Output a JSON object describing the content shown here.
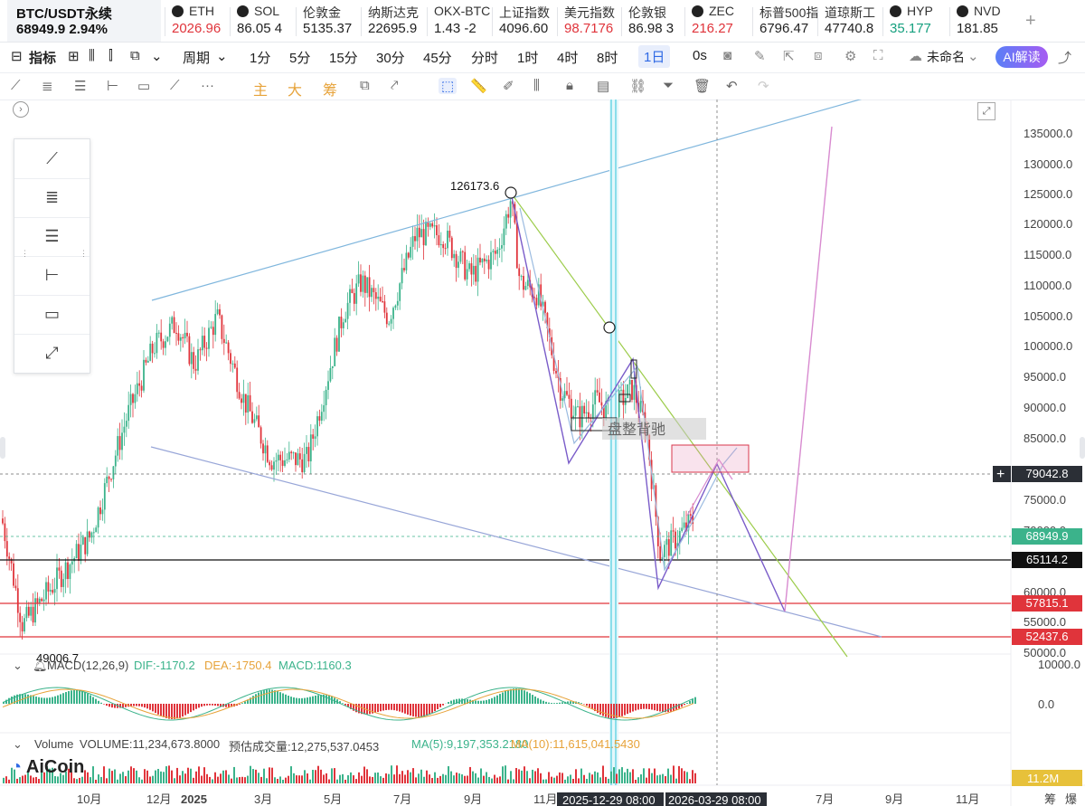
{
  "tickers": [
    {
      "name": "ETH",
      "price": "2026.96",
      "color": "red"
    },
    {
      "name": "SOL",
      "price": "86.05 4",
      "color": "normal"
    },
    {
      "name": "伦敦金",
      "price": "5135.37",
      "color": "normal"
    },
    {
      "name": "纳斯达克",
      "price": "22695.9",
      "color": "normal"
    },
    {
      "name": "OKX-BTC",
      "price": "1.43 -2",
      "color": "normal"
    },
    {
      "name": "上证指数",
      "price": "4096.60",
      "color": "normal"
    },
    {
      "name": "美元指数",
      "price": "98.7176",
      "color": "red"
    },
    {
      "name": "伦敦银",
      "price": "86.98 3",
      "color": "normal"
    },
    {
      "name": "ZEC",
      "price": "216.27",
      "color": "red"
    },
    {
      "name": "标普500指",
      "price": "6796.47",
      "color": "normal"
    },
    {
      "name": "道琼斯工",
      "price": "47740.8",
      "color": "normal"
    },
    {
      "name": "HYP",
      "price": "35.177",
      "color": "green"
    },
    {
      "name": "NVD",
      "price": "181.85",
      "color": "normal"
    }
  ],
  "main_ticker": {
    "name": "BTC/USDT永续",
    "price": "68949.9",
    "change": "2.94%"
  },
  "toolbar": {
    "indicators": "指标",
    "period": "周期",
    "intervals": [
      "1分",
      "5分",
      "15分",
      "30分",
      "45分",
      "分时",
      "1时",
      "4时",
      "8时",
      "1日"
    ],
    "active_interval": "1日",
    "seconds": "0s",
    "layout_name": "未命名",
    "ai": "AI解读"
  },
  "drawing_toolbar": {
    "chars": [
      "主",
      "大",
      "筹"
    ]
  },
  "chart": {
    "annotation_high": "126173.6",
    "annotation_low": "49006.7",
    "overlay_text": "盘整背驰",
    "price_axis": [
      "135000.0",
      "130000.0",
      "125000.0",
      "120000.0",
      "115000.0",
      "110000.0",
      "105000.0",
      "100000.0",
      "95000.0",
      "90000.0",
      "85000.0",
      "75000.0",
      "70000.0",
      "60000.0",
      "55000.0",
      "50000.0"
    ],
    "price_tags": [
      {
        "value": "79042.8",
        "color": "#2b2f36"
      },
      {
        "value": "68949.9",
        "color": "#3bb38b"
      },
      {
        "value": "65114.2",
        "color": "#111111"
      },
      {
        "value": "57815.1",
        "color": "#e0343b"
      },
      {
        "value": "52437.6",
        "color": "#e0343b"
      }
    ],
    "time_axis": [
      "10月",
      "12月",
      "2025",
      "3月",
      "5月",
      "7月",
      "9月",
      "11月",
      "7月",
      "9月",
      "11月"
    ],
    "crosshair_times": [
      "2025-12-29 08:00",
      "2026-03-29 08:00"
    ],
    "macd": {
      "label": "MACD(12,26,9)",
      "dif": "DIF:-1170.2",
      "dea": "DEA:-1750.4",
      "macd": "MACD:1160.3",
      "axis": [
        "10000.0",
        "0.0"
      ]
    },
    "volume": {
      "label": "Volume",
      "volume": "VOLUME:11,234,673.8000",
      "forecast": "预估成交量:12,275,537.0453",
      "ma5": "MA(5):9,197,353.2180",
      "ma10": "MA(10):11,615,041.5430",
      "tag": "11.2M"
    },
    "corner": [
      "筹",
      "爆"
    ]
  },
  "logo": "AiCoin",
  "colors": {
    "up": "#3bb38b",
    "down": "#e0343b",
    "accent": "#2f6ae5"
  }
}
